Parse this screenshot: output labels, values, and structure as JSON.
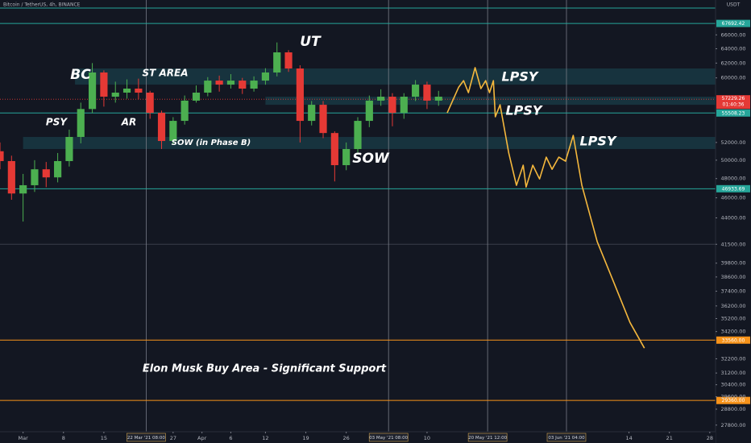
{
  "chart_data": {
    "type": "candlestick",
    "title": "Bitcoin / TetherUS, 4h, BINANCE",
    "currency": "USDT",
    "log_scale": true,
    "ylim": [
      27200,
      71300
    ],
    "xlim": [
      "2021-02-25",
      "2021-06-29"
    ],
    "yticks": [
      {
        "value": 66000,
        "label": "66000.00"
      },
      {
        "value": 64000,
        "label": "64000.00"
      },
      {
        "value": 62000,
        "label": "62000.00"
      },
      {
        "value": 60000,
        "label": "60000.00"
      },
      {
        "value": 52000,
        "label": "52000.00"
      },
      {
        "value": 50000,
        "label": "50000.00"
      },
      {
        "value": 48000,
        "label": "48000.00"
      },
      {
        "value": 46000,
        "label": "46000.00"
      },
      {
        "value": 44000,
        "label": "44000.00"
      },
      {
        "value": 41500,
        "label": "41500.00"
      },
      {
        "value": 39800,
        "label": "39800.00"
      },
      {
        "value": 38600,
        "label": "38600.00"
      },
      {
        "value": 37400,
        "label": "37400.00"
      },
      {
        "value": 36200,
        "label": "36200.00"
      },
      {
        "value": 35200,
        "label": "35200.00"
      },
      {
        "value": 34200,
        "label": "34200.00"
      },
      {
        "value": 32200,
        "label": "32200.00"
      },
      {
        "value": 31200,
        "label": "31200.00"
      },
      {
        "value": 30400,
        "label": "30400.00"
      },
      {
        "value": 29600,
        "label": "29600.00"
      },
      {
        "value": 28800,
        "label": "28800.00"
      },
      {
        "value": 27800,
        "label": "27800.00"
      }
    ],
    "xticks": [
      {
        "value": "2021-03-01",
        "label": "Mar"
      },
      {
        "value": "2021-03-08",
        "label": "8"
      },
      {
        "value": "2021-03-15",
        "label": "15"
      },
      {
        "value": "2021-03-27",
        "label": "27"
      },
      {
        "value": "2021-04-01",
        "label": "Apr"
      },
      {
        "value": "2021-04-06",
        "label": "6"
      },
      {
        "value": "2021-04-12",
        "label": "12"
      },
      {
        "value": "2021-04-19",
        "label": "19"
      },
      {
        "value": "2021-04-26",
        "label": "26"
      },
      {
        "value": "2021-05-10",
        "label": "10"
      },
      {
        "value": "2021-06-14",
        "label": "14"
      },
      {
        "value": "2021-06-21",
        "label": "21"
      },
      {
        "value": "2021-06-28",
        "label": "28"
      }
    ],
    "up_color": "#4caf50",
    "down_color": "#e53935",
    "dates": [
      "2021-02-25",
      "2021-02-27",
      "2021-03-01",
      "2021-03-03",
      "2021-03-05",
      "2021-03-07",
      "2021-03-09",
      "2021-03-11",
      "2021-03-13",
      "2021-03-15",
      "2021-03-17",
      "2021-03-19",
      "2021-03-21",
      "2021-03-23",
      "2021-03-25",
      "2021-03-27",
      "2021-03-29",
      "2021-03-31",
      "2021-04-02",
      "2021-04-04",
      "2021-04-06",
      "2021-04-08",
      "2021-04-10",
      "2021-04-12",
      "2021-04-14",
      "2021-04-16",
      "2021-04-18",
      "2021-04-20",
      "2021-04-22",
      "2021-04-24",
      "2021-04-26",
      "2021-04-28",
      "2021-04-30",
      "2021-05-02",
      "2021-05-04",
      "2021-05-06",
      "2021-05-08",
      "2021-05-10",
      "2021-05-12"
    ],
    "open": [
      51000,
      49900,
      46440,
      47300,
      49000,
      48130,
      49900,
      52640,
      56000,
      60720,
      57550,
      58070,
      58590,
      58070,
      55530,
      52170,
      54550,
      57050,
      58070,
      59640,
      59110,
      59640,
      58590,
      59640,
      60720,
      63490,
      61260,
      54550,
      56530,
      53100,
      49450,
      51250,
      54550,
      57050,
      57550,
      55530,
      57550,
      59110,
      57050
    ],
    "high": [
      52000,
      50500,
      48500,
      50000,
      49800,
      50800,
      53500,
      56800,
      62000,
      61000,
      59500,
      59800,
      59900,
      58300,
      55800,
      55000,
      57700,
      59000,
      60100,
      60300,
      60500,
      60000,
      60200,
      61300,
      64900,
      63800,
      61700,
      57000,
      57000,
      53300,
      52000,
      55000,
      57700,
      58500,
      58000,
      58000,
      59700,
      59500,
      58300
    ],
    "low": [
      49000,
      45800,
      43640,
      46600,
      47100,
      47600,
      49300,
      51900,
      55500,
      56300,
      56800,
      57300,
      57200,
      54800,
      51250,
      51800,
      54100,
      56800,
      57600,
      58200,
      58600,
      57900,
      58200,
      59100,
      60200,
      60800,
      52000,
      54000,
      52500,
      47700,
      48900,
      50800,
      53800,
      56400,
      53900,
      54800,
      57000,
      56000,
      56400
    ],
    "close": [
      49900,
      46440,
      47300,
      49000,
      48130,
      49900,
      52640,
      56000,
      60720,
      57550,
      58070,
      58590,
      58070,
      55530,
      52170,
      54550,
      57050,
      58070,
      59640,
      59110,
      59640,
      58590,
      59640,
      60720,
      63490,
      61260,
      54550,
      56530,
      53100,
      49450,
      51250,
      54550,
      57050,
      57550,
      55530,
      57550,
      59110,
      57050,
      57550
    ],
    "projection": {
      "color": "#f5b83d",
      "x": [
        "2021-05-13T12:00",
        "2021-05-15T12:00",
        "2021-05-16T08:00",
        "2021-05-17T04:00",
        "2021-05-18T08:00",
        "2021-05-19T08:00",
        "2021-05-20T04:00",
        "2021-05-20T20:00",
        "2021-05-21T12:00",
        "2021-05-21T20:00",
        "2021-05-22T16:00",
        "2021-05-24T04:00",
        "2021-05-25T12:00",
        "2021-05-26T16:00",
        "2021-05-27T04:00",
        "2021-05-28T08:00",
        "2021-05-29T12:00",
        "2021-05-30T16:00",
        "2021-05-31T16:00",
        "2021-06-01T20:00",
        "2021-06-03T00:00",
        "2021-06-04T08:00",
        "2021-06-05T20:00",
        "2021-06-08T12:00",
        "2021-06-11T08:00",
        "2021-06-14T04:00",
        "2021-06-16T16:00"
      ],
      "values": [
        55530,
        58790,
        59640,
        58070,
        61370,
        58590,
        59640,
        58070,
        59640,
        55040,
        56530,
        50790,
        47290,
        49450,
        47110,
        49450,
        47960,
        50340,
        49000,
        50340,
        49890,
        52820,
        47290,
        41730,
        38170,
        34900,
        32970
      ]
    },
    "lines": [
      {
        "price": 70040,
        "color": "#26a69a"
      },
      {
        "price": 41500,
        "color": "#3a3e4a"
      }
    ],
    "price_lines": [
      {
        "price": 67692.42,
        "color": "#26a69a"
      },
      {
        "price": 55508.23,
        "color": "#26a69a"
      },
      {
        "price": 46933.69,
        "color": "#26a69a"
      },
      {
        "price": {
          "value": 33560,
          "label": "33560.00"
        },
        "color": "#f7931a"
      },
      {
        "price": {
          "value": 29360,
          "label": "29360.00"
        },
        "color": "#f7931a"
      }
    ],
    "zones": [
      {
        "from": 59110,
        "to": 61260,
        "start": "2021-03-10"
      },
      {
        "from": 51250,
        "to": 52640,
        "start": "2021-03-01"
      },
      {
        "from": 56530,
        "to": 57550,
        "start": "2021-04-12"
      }
    ],
    "last_price": 57229.26,
    "countdown": "01:40:36",
    "last_color": "#e53935",
    "vlines": [
      {
        "value": "2021-03-22T08:00",
        "label": "22 Mar '21  08:00"
      },
      {
        "value": "2021-05-03T08:00",
        "label": "03 May '21  08:00"
      },
      {
        "value": "2021-05-20T12:00",
        "label": "20 May '21  12:00"
      },
      {
        "value": "2021-06-03T04:00",
        "label": "03 Jun '21  04:00"
      }
    ],
    "annotations": [
      "PSY",
      "BC",
      "AR",
      "ST AREA",
      "SOW (in Phase B)",
      "UT",
      "SOW",
      "LPSY",
      "LPSY",
      "LPSY",
      "Elon Musk Buy Area - Significant Support"
    ]
  }
}
